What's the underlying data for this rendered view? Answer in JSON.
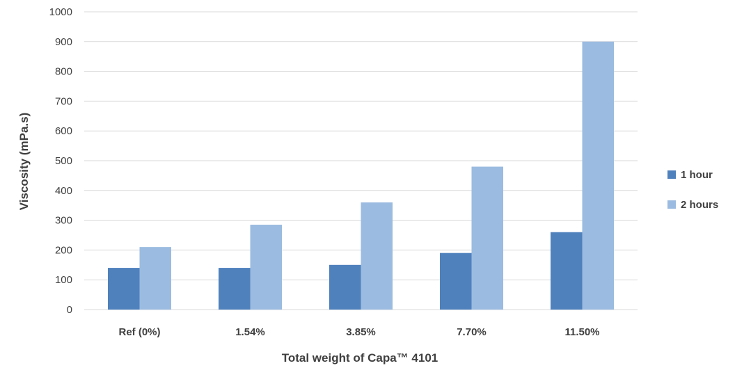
{
  "chart_data": {
    "type": "bar",
    "categories": [
      "Ref (0%)",
      "1.54%",
      "3.85%",
      "7.70%",
      "11.50%"
    ],
    "series": [
      {
        "name": "1 hour",
        "values": [
          140,
          140,
          150,
          190,
          260
        ],
        "color": "#4f81bd"
      },
      {
        "name": "2 hours",
        "values": [
          210,
          285,
          360,
          480,
          900
        ],
        "color": "#9bbbe0"
      }
    ],
    "title": "",
    "xlabel": "Total weight of Capa™ 4101",
    "ylabel": "Viscosity (mPa.s)",
    "ylim": [
      0,
      1000
    ],
    "yticks": [
      0,
      100,
      200,
      300,
      400,
      500,
      600,
      700,
      800,
      900,
      1000
    ],
    "grid": true,
    "legend_position": "right"
  }
}
